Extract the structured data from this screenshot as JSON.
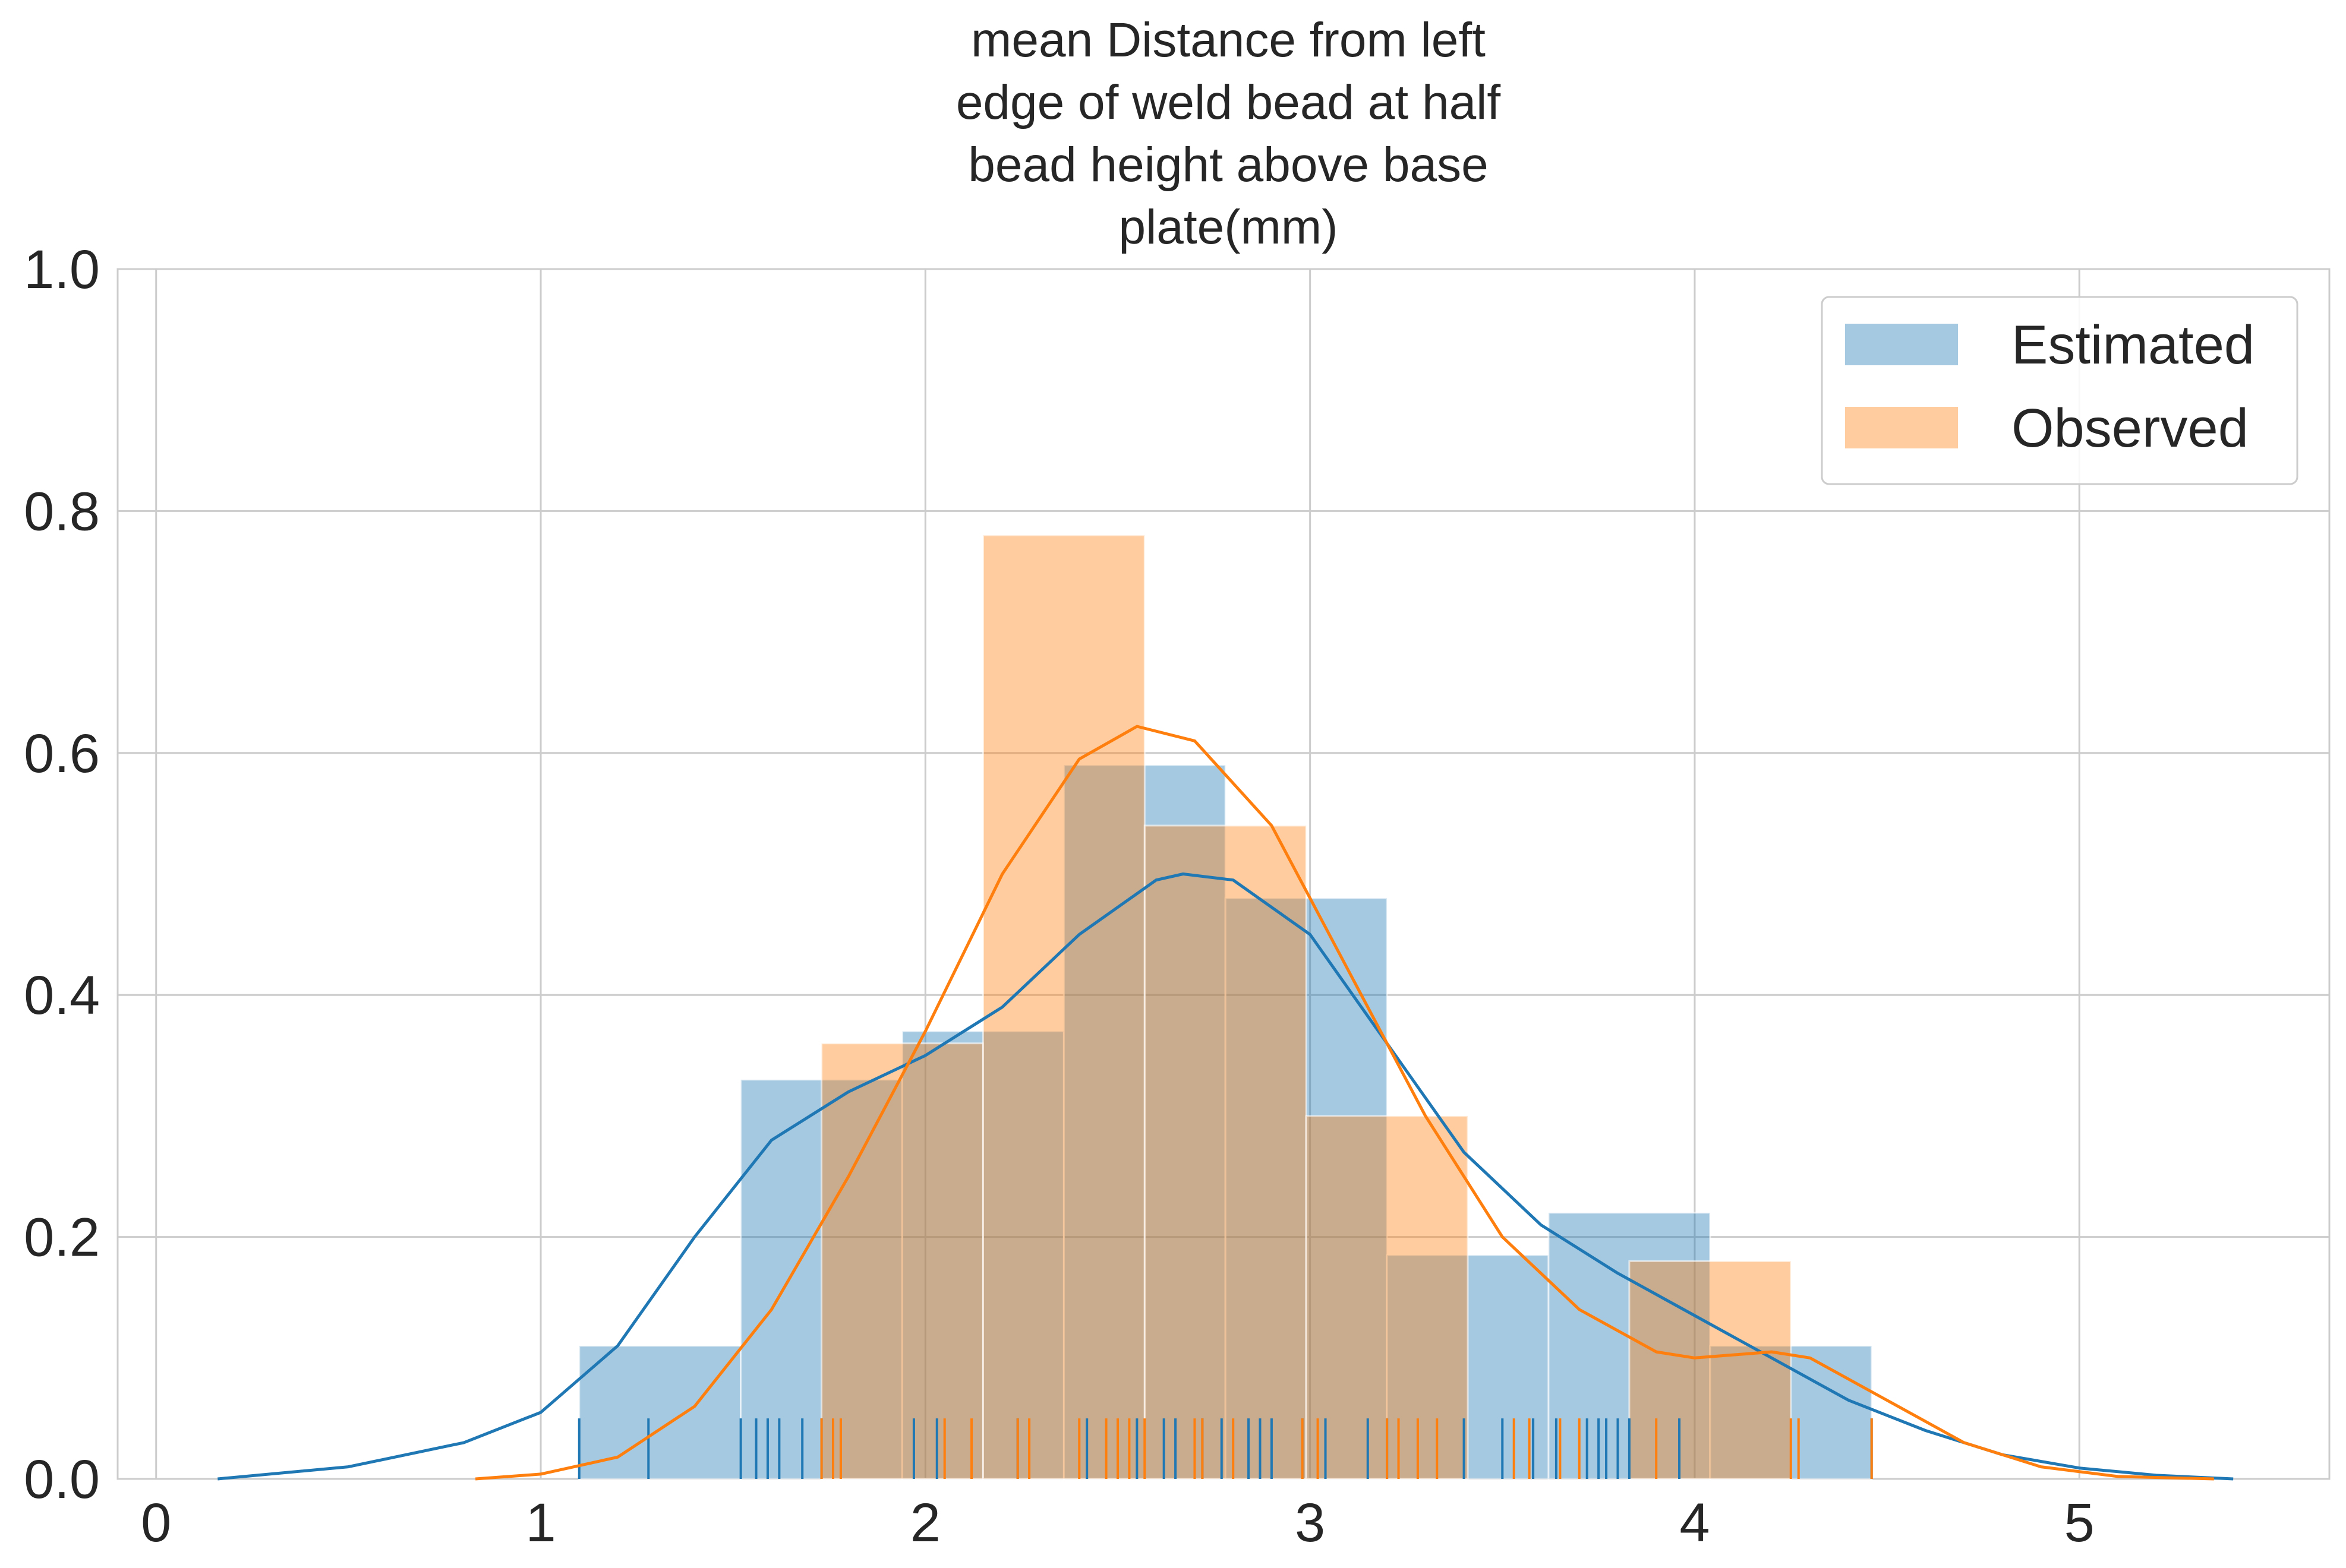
{
  "chart_data": {
    "type": "histogram",
    "title_lines": [
      "mean Distance from left",
      "edge of weld bead at half",
      "bead height above base",
      "plate(mm)"
    ],
    "xlabel": "",
    "ylabel": "",
    "xlim": [
      -0.1,
      5.65
    ],
    "ylim": [
      0,
      1.0
    ],
    "xticks": [
      "0",
      "1",
      "2",
      "3",
      "4",
      "5"
    ],
    "yticks": [
      "0.0",
      "0.2",
      "0.4",
      "0.6",
      "0.8",
      "1.0"
    ],
    "grid": true,
    "legend_position": "top-right",
    "series": [
      {
        "name": "Estimated",
        "color": "#1f77b4",
        "bins": [
          [
            1.1,
            1.52,
            0.11
          ],
          [
            1.52,
            1.94,
            0.33
          ],
          [
            1.94,
            2.36,
            0.37
          ],
          [
            2.36,
            2.78,
            0.59
          ],
          [
            2.78,
            3.2,
            0.48
          ],
          [
            3.2,
            3.62,
            0.185
          ],
          [
            3.62,
            4.04,
            0.22
          ],
          [
            4.04,
            4.46,
            0.11
          ]
        ],
        "kde": [
          [
            0.16,
            0.0
          ],
          [
            0.5,
            0.01
          ],
          [
            0.8,
            0.03
          ],
          [
            1.0,
            0.055
          ],
          [
            1.2,
            0.11
          ],
          [
            1.4,
            0.2
          ],
          [
            1.6,
            0.28
          ],
          [
            1.8,
            0.32
          ],
          [
            2.0,
            0.35
          ],
          [
            2.2,
            0.39
          ],
          [
            2.4,
            0.45
          ],
          [
            2.6,
            0.495
          ],
          [
            2.67,
            0.5
          ],
          [
            2.8,
            0.495
          ],
          [
            3.0,
            0.45
          ],
          [
            3.2,
            0.36
          ],
          [
            3.4,
            0.27
          ],
          [
            3.6,
            0.21
          ],
          [
            3.8,
            0.17
          ],
          [
            4.0,
            0.135
          ],
          [
            4.2,
            0.1
          ],
          [
            4.4,
            0.065
          ],
          [
            4.6,
            0.04
          ],
          [
            4.8,
            0.02
          ],
          [
            5.0,
            0.009
          ],
          [
            5.2,
            0.003
          ],
          [
            5.4,
            0.0
          ]
        ],
        "rug": [
          1.1,
          1.28,
          1.52,
          1.56,
          1.59,
          1.62,
          1.68,
          1.73,
          1.97,
          2.03,
          2.24,
          2.42,
          2.55,
          2.62,
          2.65,
          2.72,
          2.77,
          2.84,
          2.87,
          2.9,
          2.98,
          3.04,
          3.15,
          3.2,
          3.4,
          3.5,
          3.58,
          3.64,
          3.72,
          3.75,
          3.77,
          3.8,
          3.83,
          3.96,
          4.46
        ]
      },
      {
        "name": "Observed",
        "color": "#ff7f0e",
        "bins": [
          [
            1.73,
            2.15,
            0.36
          ],
          [
            2.15,
            2.57,
            0.78
          ],
          [
            2.57,
            2.99,
            0.54
          ],
          [
            2.99,
            3.41,
            0.3
          ],
          [
            3.41,
            3.83,
            0.0
          ],
          [
            3.83,
            4.25,
            0.18
          ],
          [
            4.25,
            4.46,
            0.0
          ]
        ],
        "kde": [
          [
            0.83,
            0.0
          ],
          [
            1.0,
            0.004
          ],
          [
            1.2,
            0.018
          ],
          [
            1.4,
            0.06
          ],
          [
            1.6,
            0.14
          ],
          [
            1.8,
            0.25
          ],
          [
            2.0,
            0.37
          ],
          [
            2.2,
            0.5
          ],
          [
            2.4,
            0.595
          ],
          [
            2.55,
            0.622
          ],
          [
            2.7,
            0.61
          ],
          [
            2.9,
            0.54
          ],
          [
            3.1,
            0.42
          ],
          [
            3.3,
            0.3
          ],
          [
            3.5,
            0.2
          ],
          [
            3.7,
            0.14
          ],
          [
            3.9,
            0.105
          ],
          [
            4.0,
            0.1
          ],
          [
            4.2,
            0.105
          ],
          [
            4.3,
            0.1
          ],
          [
            4.5,
            0.065
          ],
          [
            4.7,
            0.03
          ],
          [
            4.9,
            0.01
          ],
          [
            5.1,
            0.002
          ],
          [
            5.35,
            0.0
          ]
        ],
        "rug": [
          1.73,
          1.76,
          1.78,
          2.05,
          2.12,
          2.24,
          2.27,
          2.4,
          2.47,
          2.5,
          2.53,
          2.57,
          2.7,
          2.72,
          2.8,
          2.98,
          3.02,
          3.2,
          3.23,
          3.28,
          3.33,
          3.53,
          3.57,
          3.65,
          3.7,
          3.9,
          4.25,
          4.27,
          4.46
        ]
      }
    ]
  }
}
